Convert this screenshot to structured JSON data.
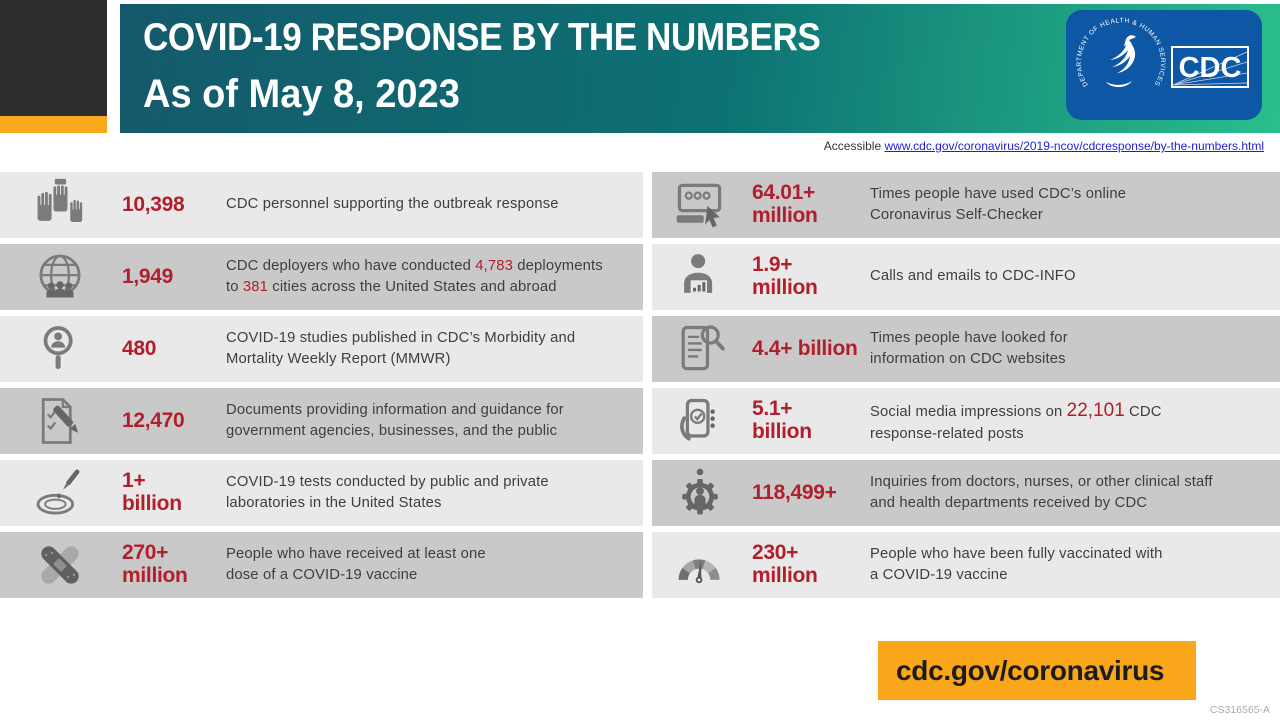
{
  "colors": {
    "accent_red": "#b11f2d",
    "header_teal": "#14596b",
    "header_green": "#29bf8c",
    "brand_orange": "#f9a61a",
    "logo_blue": "#0e57a5",
    "row_light": "#e9e9e9",
    "row_dark": "#c9c9c9",
    "black_block": "#2d2d2d"
  },
  "header": {
    "title": "COVID-19 RESPONSE BY THE NUMBERS",
    "subtitle": "As of May 8, 2023",
    "logo_text": "CDC",
    "logo_ring_text": "DEPARTMENT OF HEALTH & HUMAN SERVICES USA"
  },
  "accessible": {
    "label": "Accessible",
    "url": "www.cdc.gov/coronavirus/2019-ncov/cdcresponse/by-the-numbers.html"
  },
  "stats": {
    "left": [
      {
        "icon": "hands-raised-icon",
        "shade": "light",
        "value": "10,398",
        "desc": [
          {
            "t": "CDC personnel supporting the outbreak response"
          }
        ]
      },
      {
        "icon": "globe-people-icon",
        "shade": "dark",
        "value": "1,949",
        "desc": [
          {
            "t": "CDC deployers who have conducted "
          },
          {
            "t": "4,783",
            "red": true
          },
          {
            "t": " deployments"
          },
          {
            "br": true
          },
          {
            "t": "to "
          },
          {
            "t": "381",
            "red": true
          },
          {
            "t": " cities across the United States and abroad"
          }
        ]
      },
      {
        "icon": "magnifier-person-icon",
        "shade": "light",
        "value": "480",
        "desc": [
          {
            "t": "COVID-19 studies published in CDC’s Morbidity and"
          },
          {
            "br": true
          },
          {
            "t": "Mortality Weekly Report (MMWR)"
          }
        ]
      },
      {
        "icon": "document-pen-icon",
        "shade": "dark",
        "value": "12,470",
        "desc": [
          {
            "t": "Documents providing information and guidance for"
          },
          {
            "br": true
          },
          {
            "t": "government agencies, businesses, and the public"
          }
        ]
      },
      {
        "icon": "petri-dish-icon",
        "shade": "light",
        "value": "1+",
        "value2": "billion",
        "desc": [
          {
            "t": "COVID-19 tests conducted by public and private"
          },
          {
            "br": true
          },
          {
            "t": "laboratories in the United States"
          }
        ]
      },
      {
        "icon": "bandage-icon",
        "shade": "dark",
        "value": "270+",
        "value2": "million",
        "desc": [
          {
            "t": "People who have received at least one"
          },
          {
            "br": true
          },
          {
            "t": "dose of a COVID-19 vaccine"
          }
        ]
      }
    ],
    "right": [
      {
        "icon": "self-checker-icon",
        "shade": "dark",
        "value": "64.01+",
        "value2": "million",
        "desc": [
          {
            "t": "Times people have used CDC’s online"
          },
          {
            "br": true
          },
          {
            "t": "Coronavirus Self-Checker"
          }
        ]
      },
      {
        "icon": "person-chart-icon",
        "shade": "light",
        "value": "1.9+",
        "value2": "million",
        "desc": [
          {
            "t": "Calls and emails to CDC-INFO"
          }
        ]
      },
      {
        "icon": "website-search-icon",
        "shade": "dark",
        "value": "4.4+ billion",
        "desc": [
          {
            "t": "Times people have looked for"
          },
          {
            "br": true
          },
          {
            "t": "information on CDC websites"
          }
        ]
      },
      {
        "icon": "social-media-icon",
        "shade": "light",
        "value": "5.1+",
        "value2": "billion",
        "desc": [
          {
            "t": "Social media impressions on "
          },
          {
            "t": "22,101",
            "red": true,
            "big": true
          },
          {
            "t": " CDC"
          },
          {
            "br": true
          },
          {
            "t": "response-related posts"
          }
        ]
      },
      {
        "icon": "person-gear-icon",
        "shade": "dark",
        "value": "118,499+",
        "desc": [
          {
            "t": "Inquiries from doctors, nurses, or other clinical staff"
          },
          {
            "br": true
          },
          {
            "t": "and health departments received by CDC"
          }
        ]
      },
      {
        "icon": "gauge-icon",
        "shade": "light",
        "value": "230+",
        "value2": "million",
        "desc": [
          {
            "t": "People who have been fully vaccinated with"
          },
          {
            "br": true
          },
          {
            "t": "a COVID-19 vaccine"
          }
        ]
      }
    ]
  },
  "footer": {
    "link": "cdc.gov/coronavirus",
    "doc_id": "CS316565-A"
  }
}
